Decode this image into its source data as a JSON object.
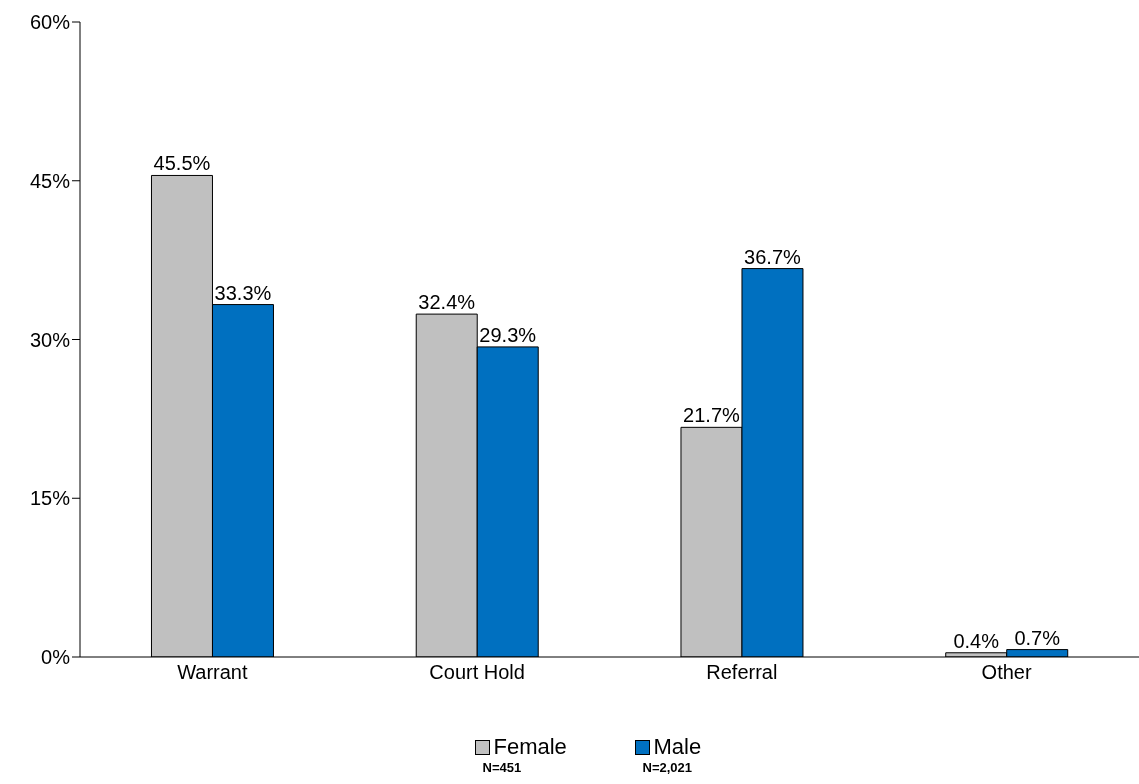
{
  "chart_data": {
    "type": "bar",
    "categories": [
      "Warrant",
      "Court Hold",
      "Referral",
      "Other"
    ],
    "series": [
      {
        "name": "Female",
        "color": "#c0c0c0",
        "values": [
          45.5,
          32.4,
          21.7,
          0.4
        ],
        "value_labels": [
          "45.5%",
          "32.4%",
          "21.7%",
          "0.4%"
        ]
      },
      {
        "name": "Male",
        "color": "#0070c0",
        "values": [
          33.3,
          29.3,
          36.7,
          0.7
        ],
        "value_labels": [
          "33.3%",
          "29.3%",
          "36.7%",
          "0.7%"
        ]
      }
    ],
    "ylim": [
      0,
      60
    ],
    "yticks": [
      {
        "value": 0,
        "label": "0%"
      },
      {
        "value": 15,
        "label": "15%"
      },
      {
        "value": 30,
        "label": "30%"
      },
      {
        "value": 45,
        "label": "45%"
      },
      {
        "value": 60,
        "label": "60%"
      }
    ],
    "grid": false,
    "legend": "bottom",
    "annotations": [
      "N=451",
      "N=2,021"
    ]
  }
}
